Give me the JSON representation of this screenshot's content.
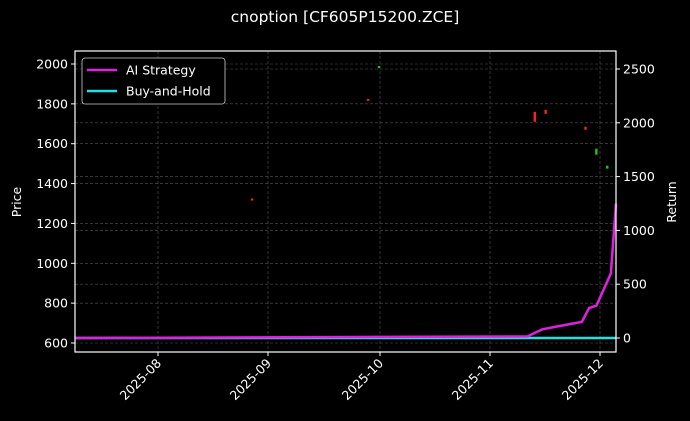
{
  "chart_data": {
    "type": "line",
    "title": "cnoption [CF605P15200.ZCE]",
    "xlabel": "",
    "ylabel": "Price",
    "ylabel_right": "Return",
    "ylim": [
      560,
      2060
    ],
    "ylim_right": [
      -130,
      2660
    ],
    "yticks": [
      600,
      800,
      1000,
      1200,
      1400,
      1600,
      1800,
      2000
    ],
    "yticks_right": [
      0,
      500,
      1000,
      1500,
      2000,
      2500
    ],
    "xticks": [
      "2025-08",
      "2025-09",
      "2025-10",
      "2025-11",
      "2025-12"
    ],
    "grid": true,
    "legend_position": "upper left",
    "background": "#000000",
    "series": [
      {
        "name": "AI Strategy",
        "color": "#e020e0",
        "axis": "right",
        "x": [
          "2025-07-12",
          "2025-11-11",
          "2025-11-15",
          "2025-11-18",
          "2025-11-26",
          "2025-11-28",
          "2025-11-30",
          "2025-12-04",
          "2025-12-07"
        ],
        "values": [
          0,
          15,
          80,
          100,
          150,
          280,
          300,
          600,
          1250
        ]
      },
      {
        "name": "Buy-and-Hold",
        "color": "#20e0e0",
        "axis": "right",
        "x": [
          "2025-07-12",
          "2025-12-07"
        ],
        "values": [
          0,
          0
        ]
      }
    ],
    "candles": [
      {
        "date": "2025-08-27",
        "open": 1315,
        "close": 1325,
        "color": "#ff2020"
      },
      {
        "date": "2025-09-28",
        "open": 1820,
        "close": 1825,
        "color": "#ff2020"
      },
      {
        "date": "2025-10-01",
        "open": 1985,
        "close": 1990,
        "color": "#20c020"
      },
      {
        "date": "2025-11-13",
        "open": 1760,
        "close": 1710,
        "color": "#ff2020"
      },
      {
        "date": "2025-11-16",
        "open": 1770,
        "close": 1750,
        "color": "#ff2020"
      },
      {
        "date": "2025-11-27",
        "open": 1685,
        "close": 1670,
        "color": "#ff2020"
      },
      {
        "date": "2025-11-30",
        "open": 1545,
        "close": 1575,
        "color": "#20c020"
      },
      {
        "date": "2025-12-03",
        "open": 1475,
        "close": 1490,
        "color": "#20c020"
      }
    ]
  }
}
